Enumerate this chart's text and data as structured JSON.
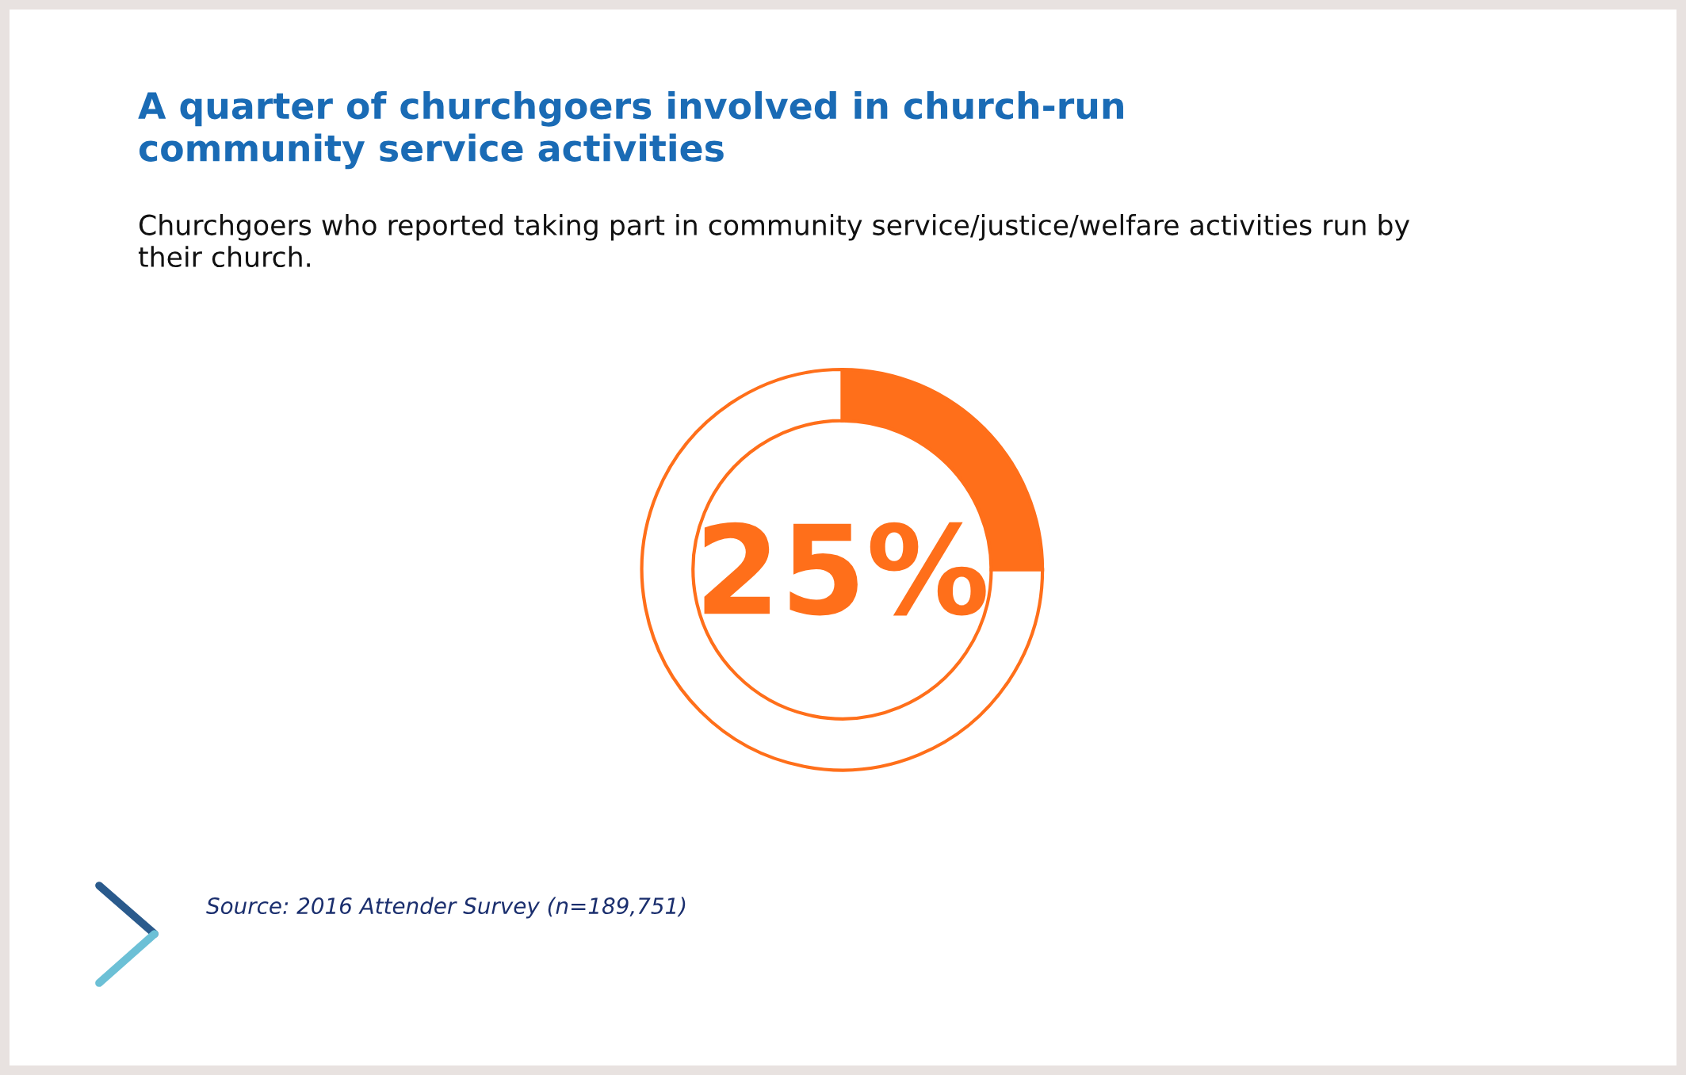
{
  "chart_data": {
    "type": "donut",
    "title": "A quarter of churchgoers involved in church-run\ncommunity service activities",
    "subtitle": "Churchgoers who reported taking part in community service/justice/welfare activities run by\ntheir church.",
    "categories": [
      null,
      null
    ],
    "values": [
      25,
      75
    ],
    "colors": [
      "#ff6f1a",
      "#ffffff"
    ],
    "value_labels": [
      "25%",
      null
    ],
    "annotations": [
      "Source: 2016 Attender Survey (n=189,751)"
    ]
  }
}
